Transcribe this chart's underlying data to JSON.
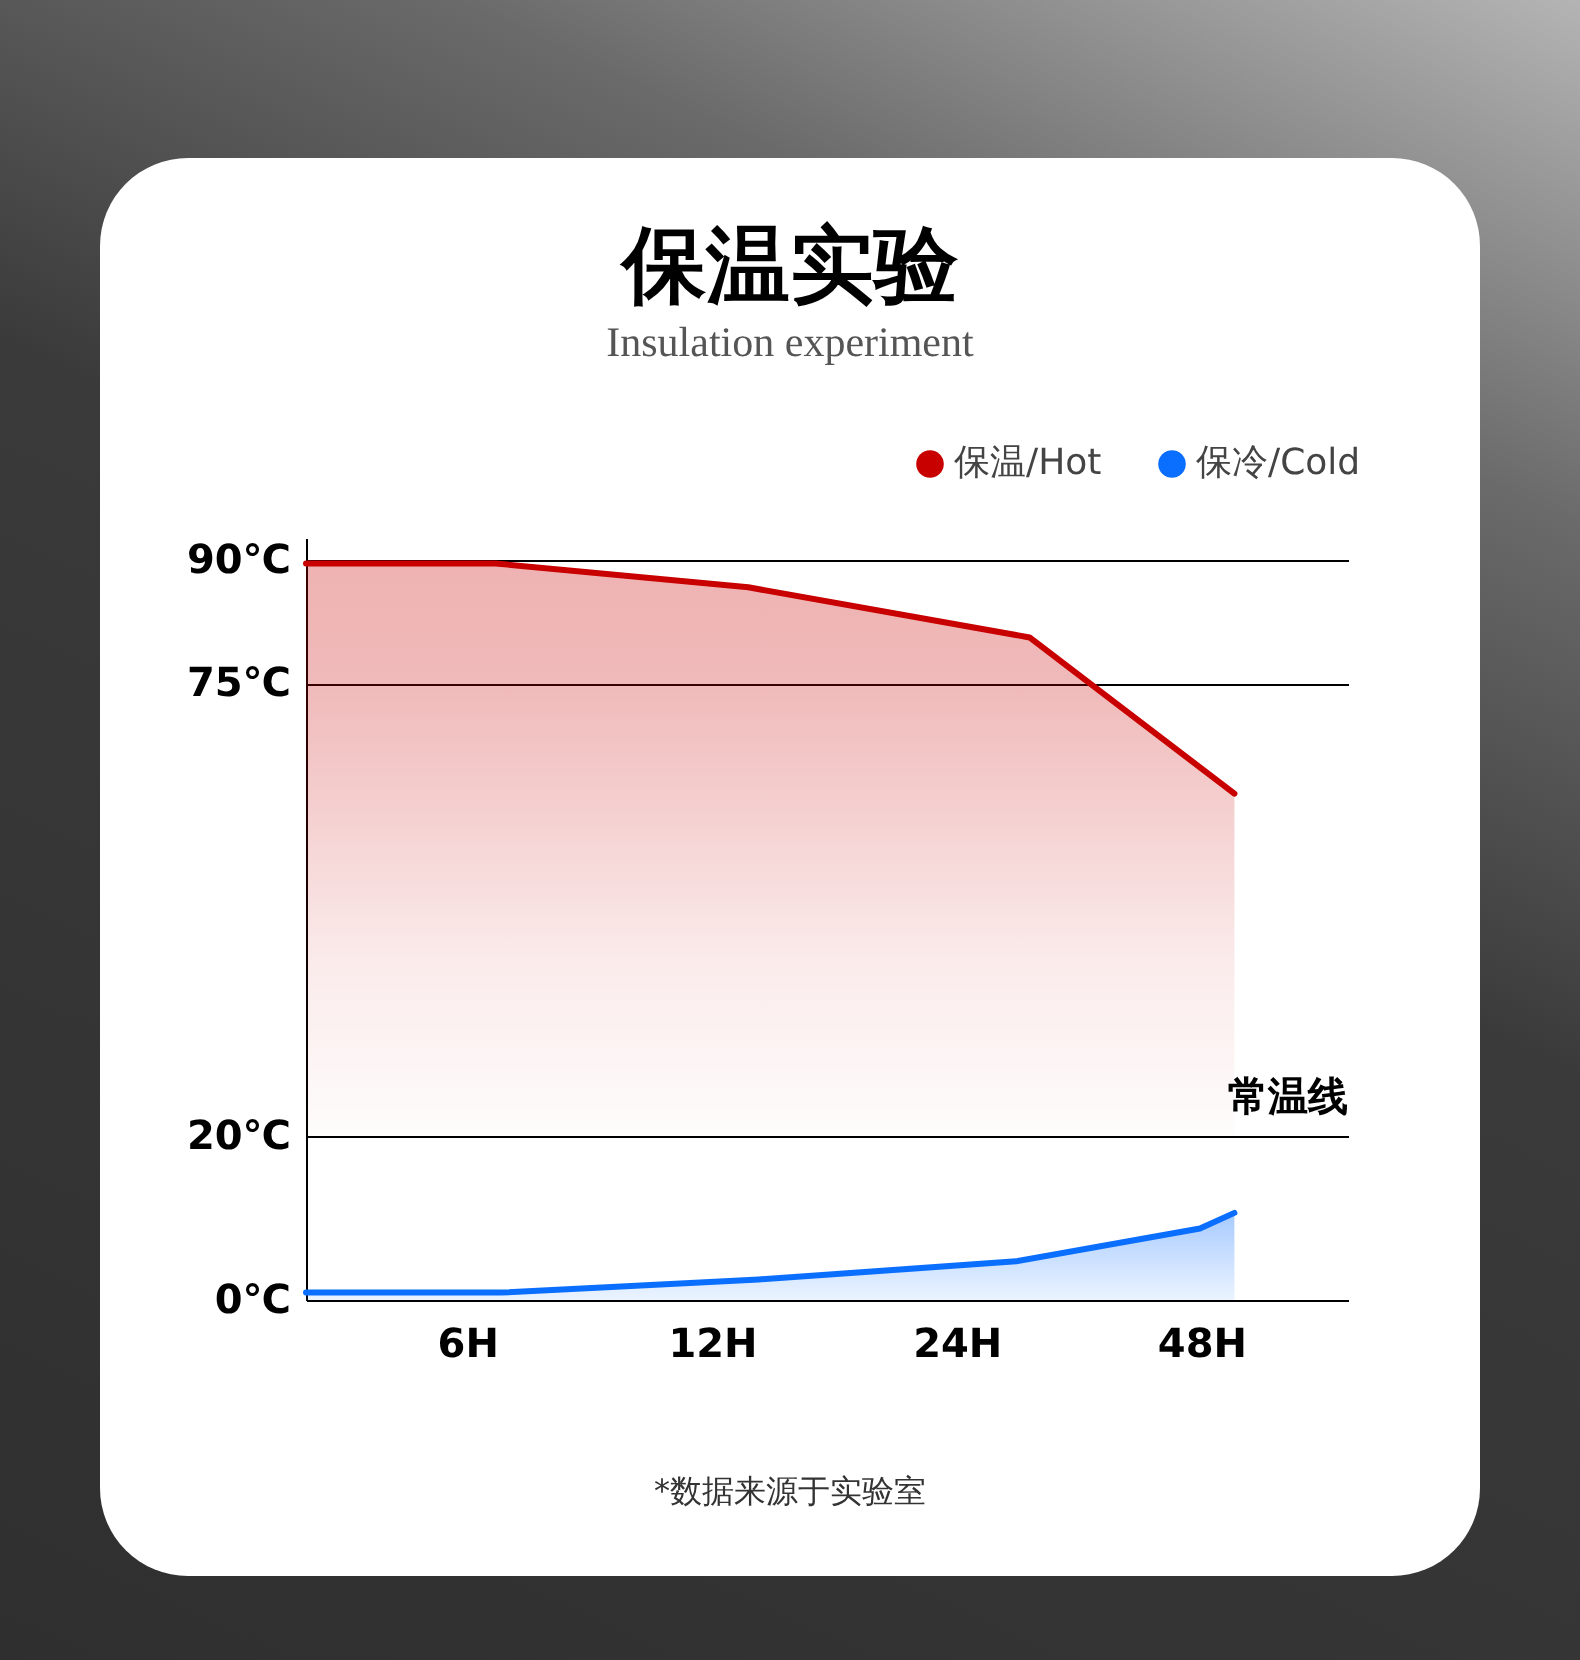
{
  "chart_data": {
    "type": "area",
    "title": "保温实验",
    "subtitle": "Insulation experiment",
    "series": [
      {
        "name": "保温/Hot",
        "type": "line",
        "color": "#c80000",
        "x": [
          3.8,
          6.5,
          13.3,
          29.5,
          52.7
        ],
        "values": [
          89.6,
          89.6,
          86.7,
          80.6,
          61.6
        ],
        "lower": [
          20,
          20,
          20,
          20,
          20
        ],
        "upper": [
          89.6,
          89.6,
          86.7,
          80.6,
          61.6
        ]
      },
      {
        "name": "保冷/Cold",
        "color": "#0a6eff",
        "x": [
          3.8,
          6.6,
          13.7,
          28.4,
          47.8,
          52.7
        ],
        "values": [
          0.9,
          0.9,
          2.5,
          4.7,
          8.7,
          10.6
        ]
      }
    ],
    "log": "x",
    "xlim": [
      3.8,
      72.7
    ],
    "xticks": [
      {
        "value": 6,
        "label": "6H"
      },
      {
        "value": 12,
        "label": "12H"
      },
      {
        "value": 24,
        "label": "24H"
      },
      {
        "value": 48,
        "label": "48H"
      }
    ],
    "ylim": [
      0,
      92.7
    ],
    "yticks": [
      {
        "value": 0,
        "label": "0℃"
      },
      {
        "value": 20,
        "label": "20℃"
      },
      {
        "value": 75,
        "label": "75℃"
      },
      {
        "value": 90,
        "label": "90℃"
      }
    ],
    "grid": "y",
    "legend": "top right",
    "line_style": "solid",
    "annotations": [
      "常温线",
      "*数据来源于实验室"
    ]
  }
}
